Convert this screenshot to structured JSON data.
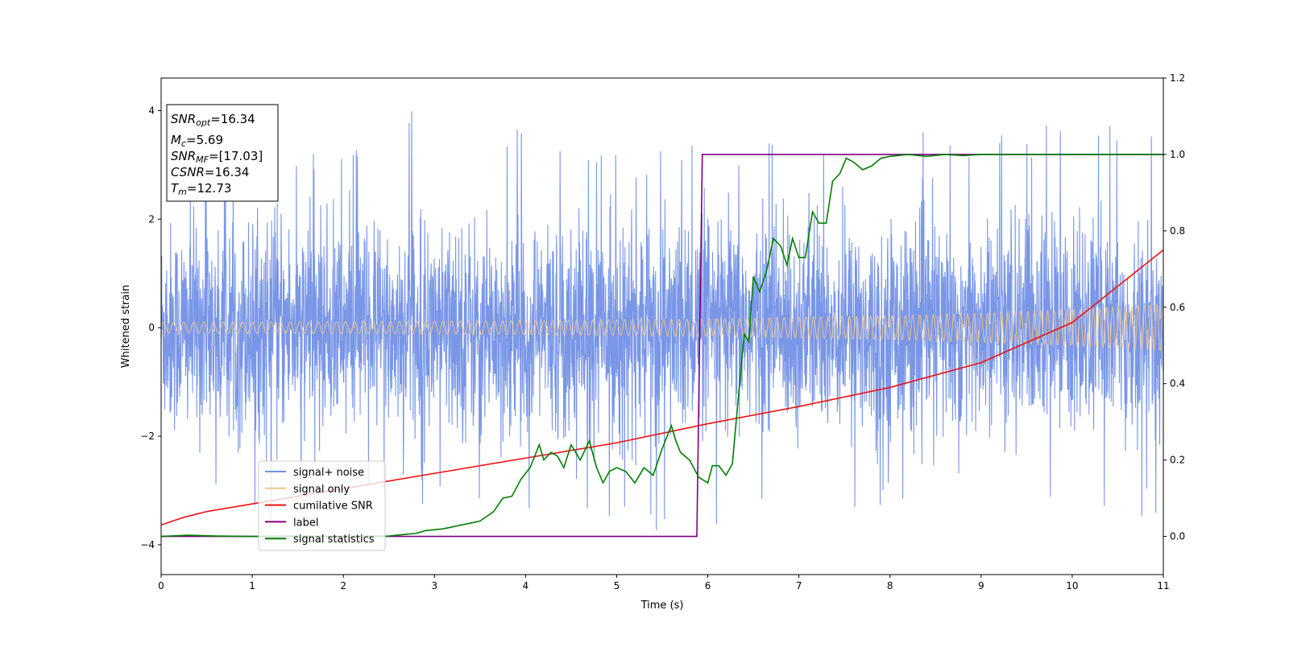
{
  "chart_data": {
    "type": "line",
    "xlabel": "Time (s)",
    "ylabel": "Whitened strain",
    "xlim": [
      0,
      11
    ],
    "ylim": [
      -4.55,
      4.6
    ],
    "y2lim": [
      -0.1,
      1.2
    ],
    "xticks": [
      0,
      1,
      2,
      3,
      4,
      5,
      6,
      7,
      8,
      9,
      10,
      11
    ],
    "yticks": [
      -4,
      -2,
      0,
      2,
      4
    ],
    "y2ticks": [
      0.0,
      0.2,
      0.4,
      0.6,
      0.8,
      1.0,
      1.2
    ],
    "xtick_labels": [
      "0",
      "1",
      "2",
      "3",
      "4",
      "5",
      "6",
      "7",
      "8",
      "9",
      "10",
      "11"
    ],
    "ytick_labels": [
      "−4",
      "−2",
      "0",
      "2",
      "4"
    ],
    "y2tick_labels": [
      "0.0",
      "0.2",
      "0.4",
      "0.6",
      "0.8",
      "1.0",
      "1.2"
    ],
    "grid": false,
    "legend_position": "lower-left",
    "info_box": {
      "position": "top-left",
      "lines": [
        {
          "main": "SNR",
          "sub": "opt",
          "value": "=16.34"
        },
        {
          "main": "M",
          "sub": "c",
          "value": "=5.69"
        },
        {
          "main": "SNR",
          "sub": "MF",
          "value": "=[17.03]"
        },
        {
          "main": "CSNR",
          "sub": "",
          "value": "=16.34"
        },
        {
          "main": "T",
          "sub": "m",
          "value": "=12.73"
        }
      ]
    },
    "series": [
      {
        "name": "signal+ noise",
        "axis": "left",
        "color": "#7290e6",
        "style": "dense noise band (approx. ±2.3 typical, peaks near ±4)",
        "envelope_x": [
          0,
          1,
          2,
          3,
          4,
          5,
          6,
          7,
          8,
          9,
          10,
          11
        ],
        "envelope_upper": [
          3.6,
          3.4,
          3.4,
          4.2,
          3.6,
          3.5,
          3.4,
          3.8,
          3.6,
          3.6,
          4.2,
          3.9
        ],
        "envelope_lower": [
          -2.9,
          -3.6,
          -3.3,
          -3.4,
          -3.8,
          -3.8,
          -4.1,
          -3.5,
          -3.4,
          -3.6,
          -3.5,
          -3.5
        ]
      },
      {
        "name": "signal only",
        "axis": "left",
        "color": "#f4c68a",
        "style": "oscillating chirp with growing amplitude",
        "envelope_x": [
          0,
          2,
          4,
          6,
          8,
          9,
          10,
          11
        ],
        "envelope_amplitude": [
          0.1,
          0.11,
          0.13,
          0.16,
          0.22,
          0.27,
          0.33,
          0.43
        ]
      },
      {
        "name": "cumilative SNR",
        "axis": "right",
        "color": "#ee1111",
        "x": [
          0,
          0.25,
          0.5,
          1,
          2,
          3,
          4,
          5,
          6,
          7,
          8,
          9,
          10,
          11
        ],
        "y": [
          0.03,
          0.05,
          0.065,
          0.085,
          0.125,
          0.165,
          0.205,
          0.245,
          0.295,
          0.34,
          0.39,
          0.455,
          0.56,
          0.75
        ]
      },
      {
        "name": "label",
        "axis": "right",
        "color": "#800080",
        "x": [
          0,
          5.88,
          5.94,
          11
        ],
        "y": [
          0.0,
          0.0,
          1.0,
          1.0
        ]
      },
      {
        "name": "signal statistics",
        "axis": "right",
        "color": "#007f00",
        "x": [
          0,
          0.3,
          0.6,
          1,
          1.5,
          2,
          2.5,
          2.8,
          2.9,
          3.1,
          3.3,
          3.5,
          3.65,
          3.75,
          3.85,
          3.95,
          4.05,
          4.15,
          4.2,
          4.28,
          4.35,
          4.42,
          4.5,
          4.6,
          4.7,
          4.78,
          4.85,
          4.92,
          5.0,
          5.1,
          5.2,
          5.3,
          5.4,
          5.5,
          5.6,
          5.65,
          5.7,
          5.8,
          5.9,
          6.0,
          6.05,
          6.12,
          6.2,
          6.27,
          6.33,
          6.4,
          6.45,
          6.5,
          6.57,
          6.65,
          6.72,
          6.8,
          6.87,
          6.93,
          7.0,
          7.07,
          7.15,
          7.22,
          7.3,
          7.37,
          7.45,
          7.52,
          7.6,
          7.7,
          7.8,
          7.9,
          8.0,
          8.2,
          8.4,
          8.6,
          8.8,
          9.0,
          9.5,
          10.0,
          10.5,
          11.0
        ],
        "y": [
          0.0,
          0.003,
          0.001,
          0.0,
          0.001,
          0.0,
          0.001,
          0.008,
          0.015,
          0.02,
          0.03,
          0.04,
          0.065,
          0.1,
          0.105,
          0.15,
          0.18,
          0.24,
          0.2,
          0.22,
          0.21,
          0.18,
          0.24,
          0.2,
          0.25,
          0.18,
          0.14,
          0.17,
          0.18,
          0.17,
          0.14,
          0.18,
          0.16,
          0.23,
          0.29,
          0.25,
          0.22,
          0.2,
          0.155,
          0.14,
          0.185,
          0.185,
          0.16,
          0.19,
          0.35,
          0.53,
          0.51,
          0.68,
          0.64,
          0.7,
          0.78,
          0.76,
          0.71,
          0.78,
          0.73,
          0.73,
          0.85,
          0.82,
          0.82,
          0.93,
          0.95,
          0.99,
          0.98,
          0.96,
          0.97,
          0.99,
          0.995,
          1.0,
          0.995,
          1.0,
          0.997,
          1.0,
          1.0,
          1.0,
          1.0,
          1.0
        ]
      }
    ]
  }
}
